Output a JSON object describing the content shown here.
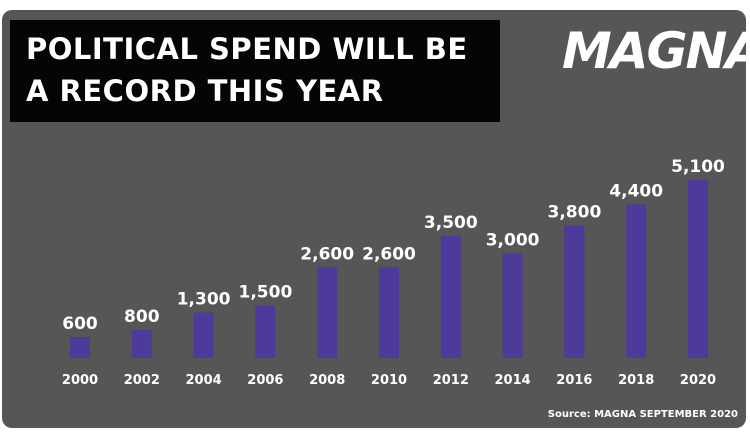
{
  "header": {
    "title_line1": "POLITICAL SPEND WILL BE",
    "title_line2": "A RECORD THIS YEAR"
  },
  "brand": {
    "logo_text": "MAGNA"
  },
  "footer": {
    "source": "Source: MAGNA SEPTEMBER 2020"
  },
  "colors": {
    "background": "#565656",
    "title_box": "#050505",
    "bar": "#4e3a9a",
    "text": "#ffffff"
  },
  "chart_data": {
    "type": "bar",
    "categories": [
      "2000",
      "2002",
      "2004",
      "2006",
      "2008",
      "2010",
      "2012",
      "2014",
      "2016",
      "2018",
      "2020"
    ],
    "values": [
      600,
      800,
      1300,
      1500,
      2600,
      2600,
      3500,
      3000,
      3800,
      4400,
      5100
    ],
    "data_labels": [
      "600",
      "800",
      "1,300",
      "1,500",
      "2,600",
      "2,600",
      "3,500",
      "3,000",
      "3,800",
      "4,400",
      "5,100"
    ],
    "title": "POLITICAL SPEND WILL BE A RECORD THIS YEAR",
    "xlabel": "",
    "ylabel": "",
    "ylim": [
      0,
      5100
    ],
    "grid": false,
    "legend": "none"
  }
}
